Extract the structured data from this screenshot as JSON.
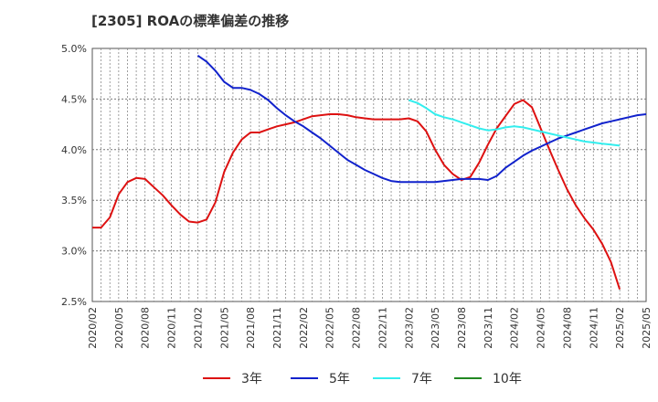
{
  "title": "[2305]  ROAの標準偏差の推移",
  "chart_data": {
    "type": "line",
    "title": "[2305]  ROAの標準偏差の推移",
    "x_ticks": [
      "2020/02",
      "2020/05",
      "2020/08",
      "2020/11",
      "2021/02",
      "2021/05",
      "2021/08",
      "2021/11",
      "2022/02",
      "2022/05",
      "2022/08",
      "2022/11",
      "2023/02",
      "2023/05",
      "2023/08",
      "2023/11",
      "2024/02",
      "2024/05",
      "2024/08",
      "2024/11",
      "2025/02",
      "2025/05"
    ],
    "y_ticks": [
      "2.5%",
      "3.0%",
      "3.5%",
      "4.0%",
      "4.5%",
      "5.0%"
    ],
    "ylim": [
      2.5,
      5.0
    ],
    "grid": true,
    "legend_position": "bottom",
    "series": [
      {
        "name": "3年",
        "color": "#dd1111",
        "start_index": 0,
        "values": [
          3.23,
          3.23,
          3.33,
          3.56,
          3.68,
          3.72,
          3.71,
          3.63,
          3.55,
          3.45,
          3.36,
          3.29,
          3.28,
          3.31,
          3.48,
          3.78,
          3.97,
          4.1,
          4.17,
          4.17,
          4.2,
          4.23,
          4.25,
          4.27,
          4.3,
          4.33,
          4.34,
          4.35,
          4.35,
          4.34,
          4.32,
          4.31,
          4.3,
          4.3,
          4.3,
          4.3,
          4.31,
          4.28,
          4.18,
          4.0,
          3.85,
          3.76,
          3.7,
          3.73,
          3.87,
          4.05,
          4.21,
          4.33,
          4.45,
          4.49,
          4.42,
          4.21,
          4.0,
          3.8,
          3.61,
          3.45,
          3.32,
          3.21,
          3.07,
          2.89,
          2.62
        ]
      },
      {
        "name": "5年",
        "color": "#1122cc",
        "start_index": 12,
        "values": [
          4.93,
          4.87,
          4.78,
          4.67,
          4.61,
          4.61,
          4.59,
          4.55,
          4.49,
          4.41,
          4.34,
          4.28,
          4.23,
          4.17,
          4.11,
          4.04,
          3.97,
          3.9,
          3.85,
          3.8,
          3.76,
          3.72,
          3.69,
          3.68,
          3.68,
          3.68,
          3.68,
          3.68,
          3.69,
          3.7,
          3.71,
          3.71,
          3.71,
          3.7,
          3.74,
          3.82,
          3.88,
          3.94,
          3.99,
          4.03,
          4.07,
          4.11,
          4.14,
          4.17,
          4.2,
          4.23,
          4.26,
          4.28,
          4.3,
          4.32,
          4.34,
          4.35
        ]
      },
      {
        "name": "7年",
        "color": "#33eeee",
        "start_index": 36,
        "values": [
          4.49,
          4.46,
          4.41,
          4.35,
          4.32,
          4.3,
          4.27,
          4.24,
          4.21,
          4.19,
          4.2,
          4.22,
          4.23,
          4.22,
          4.2,
          4.18,
          4.16,
          4.14,
          4.12,
          4.1,
          4.08,
          4.07,
          4.06,
          4.05,
          4.04
        ]
      },
      {
        "name": "10年",
        "color": "#228822",
        "start_index": 0,
        "values": []
      }
    ]
  }
}
